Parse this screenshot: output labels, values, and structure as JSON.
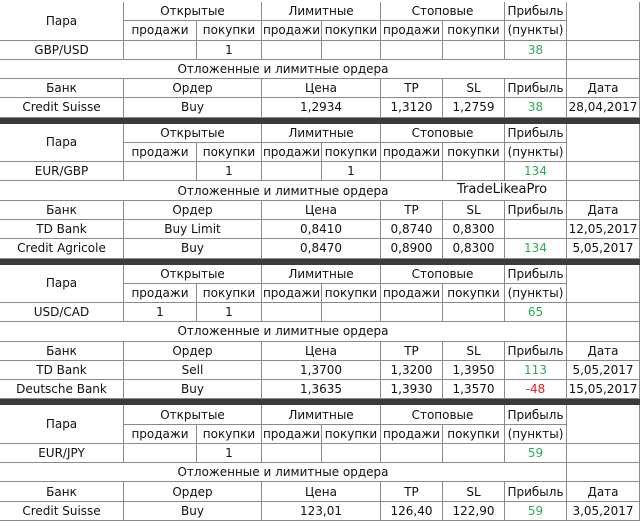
{
  "blocks": [
    {
      "header": {
        "pair": "Пара",
        "open": "Открытые",
        "limit": "Лимитные",
        "stop": "Стоповые",
        "profit": "Прибыль",
        "sub": [
          "продажи",
          "покупки",
          "продажи",
          "покупки",
          "продажи",
          "покупки"
        ],
        "profit_unit": "(пункты)"
      },
      "pair_row": {
        "name": "GBP/USD",
        "open_buy": "1",
        "profit": "38"
      },
      "pending_title": "Отложенные и лимитные ордера",
      "orders_header": {
        "bank": "Банк",
        "order": "Ордер",
        "price": "Цена",
        "tp": "TP",
        "sl": "SL",
        "profit": "Прибыль",
        "date": "Дата"
      },
      "orders": [
        {
          "bank": "Credit Suisse",
          "order": "Buy",
          "price": "1,2934",
          "tp": "1,3120",
          "sl": "1,2759",
          "profit": "38",
          "date": "28,04,2017"
        }
      ]
    },
    {
      "header": {
        "pair": "Пара",
        "open": "Открытые",
        "limit": "Лимитные",
        "stop": "Стоповые",
        "profit": "Прибыль",
        "sub": [
          "продажи",
          "покупки",
          "продажи",
          "покупки",
          "продажи",
          "покупки"
        ],
        "profit_unit": "(пункты)"
      },
      "pair_row": {
        "name": "EUR/GBP",
        "open_buy": "1",
        "limit_buy": "1",
        "profit": "134"
      },
      "pending_title": "Отложенные и лимитные ордера",
      "watermark": "TradeLikeaPro",
      "orders_header": {
        "bank": "Банк",
        "order": "Ордер",
        "price": "Цена",
        "tp": "TP",
        "sl": "SL",
        "profit": "Прибыль",
        "date": "Дата"
      },
      "orders": [
        {
          "bank": "TD Bank",
          "order": "Buy Limit",
          "price": "0,8410",
          "tp": "0,8740",
          "sl": "0,8300",
          "date": "12,05,2017"
        },
        {
          "bank": "Credit Agricole",
          "order": "Buy",
          "price": "0,8470",
          "tp": "0,8900",
          "sl": "0,8300",
          "profit": "134",
          "date": "5,05,2017"
        }
      ]
    },
    {
      "header": {
        "pair": "Пара",
        "open": "Открытые",
        "limit": "Лимитные",
        "stop": "Стоповые",
        "profit": "Прибыль",
        "sub": [
          "продажи",
          "покупки",
          "продажи",
          "покупки",
          "продажи",
          "покупки"
        ],
        "profit_unit": "(пункты)"
      },
      "pair_row": {
        "name": "USD/CAD",
        "open_sell": "1",
        "open_buy": "1",
        "profit": "65"
      },
      "pending_title": "Отложенные и лимитные ордера",
      "orders_header": {
        "bank": "Банк",
        "order": "Ордер",
        "price": "Цена",
        "tp": "TP",
        "sl": "SL",
        "profit": "Прибыль",
        "date": "Дата"
      },
      "orders": [
        {
          "bank": "TD Bank",
          "order": "Sell",
          "price": "1,3700",
          "tp": "1,3200",
          "sl": "1,3950",
          "profit": "113",
          "date": "5,05,2017"
        },
        {
          "bank": "Deutsche Bank",
          "order": "Buy",
          "price": "1,3635",
          "tp": "1,3930",
          "sl": "1,3570",
          "profit": "-48",
          "date": "15,05,2017"
        }
      ]
    },
    {
      "header": {
        "pair": "Пара",
        "open": "Открытые",
        "limit": "Лимитные",
        "stop": "Стоповые",
        "profit": "Прибыль",
        "sub": [
          "продажи",
          "покупки",
          "продажи",
          "покупки",
          "продажи",
          "покупки"
        ],
        "profit_unit": "(пункты)"
      },
      "pair_row": {
        "name": "EUR/JPY",
        "open_buy": "1",
        "profit": "59"
      },
      "pending_title": "Отложенные и лимитные ордера",
      "orders_header": {
        "bank": "Банк",
        "order": "Ордер",
        "price": "Цена",
        "tp": "TP",
        "sl": "SL",
        "profit": "Прибыль",
        "date": "Дата"
      },
      "orders": [
        {
          "bank": "Credit Suisse",
          "order": "Buy",
          "price": "123,01",
          "tp": "126,40",
          "sl": "122,90",
          "profit": "59",
          "date": "3,05,2017"
        }
      ]
    }
  ]
}
